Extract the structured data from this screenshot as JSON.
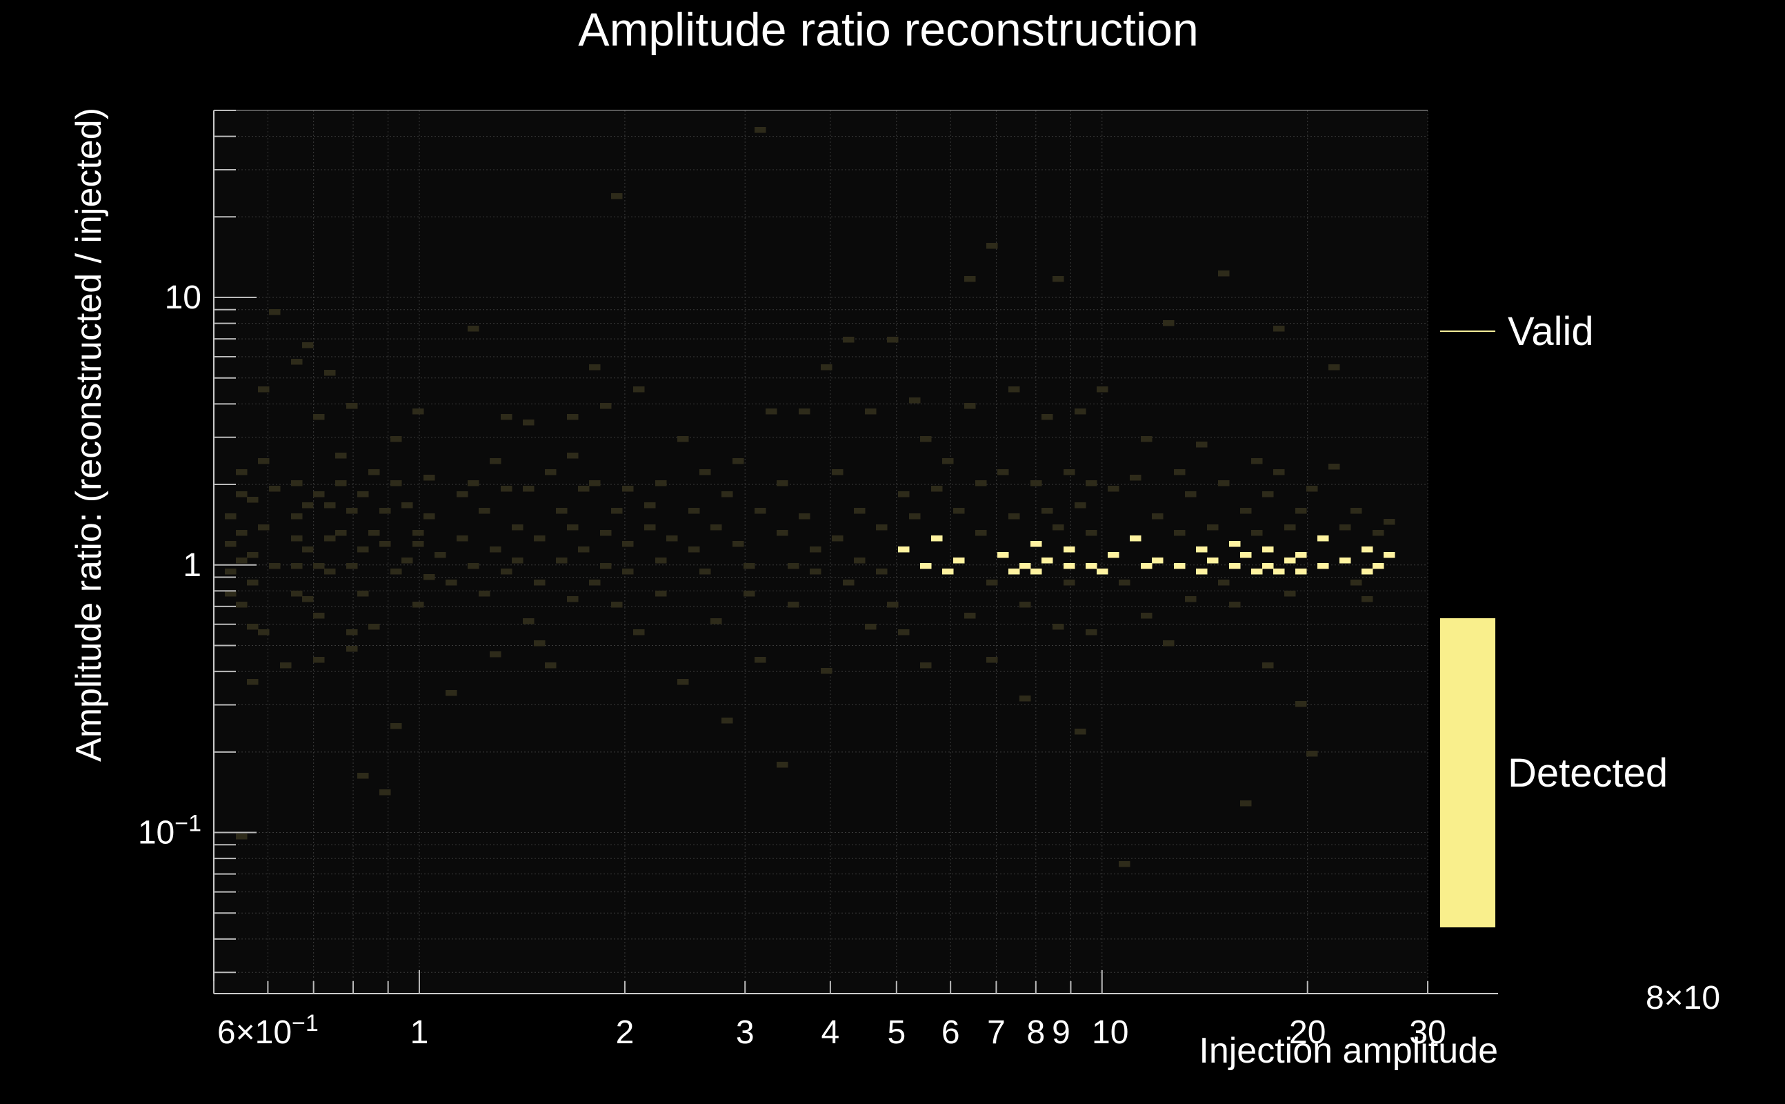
{
  "chart_data": {
    "type": "heatmap",
    "title": "Amplitude ratio  reconstruction",
    "xlabel": "Injection amplitude",
    "ylabel": "Amplitude ratio: (reconstructed / injected)",
    "x_scale": "log",
    "y_scale": "log",
    "xlim": [
      0.5,
      30
    ],
    "ylim": [
      0.025,
      50
    ],
    "grid": true,
    "x_ticks": [
      {
        "value": 0.6,
        "label": "6×10",
        "exp": "−1"
      },
      {
        "value": 1,
        "label": "1"
      },
      {
        "value": 2,
        "label": "2"
      },
      {
        "value": 3,
        "label": "3"
      },
      {
        "value": 4,
        "label": "4"
      },
      {
        "value": 5,
        "label": "5"
      },
      {
        "value": 6,
        "label": "6"
      },
      {
        "value": 7,
        "label": "7"
      },
      {
        "value": 8,
        "label": "8"
      },
      {
        "value": 9,
        "label": "9"
      },
      {
        "value": 10,
        "label": "10"
      },
      {
        "value": 20,
        "label": "20"
      },
      {
        "value": 30,
        "label": "30"
      }
    ],
    "y_ticks": [
      {
        "value": 10,
        "label": "10"
      },
      {
        "value": 1,
        "label": "1"
      },
      {
        "value": 0.1,
        "label": "10",
        "exp": "−1"
      }
    ],
    "colorbar_label": "8×10",
    "legend": {
      "position": "right",
      "entries": [
        {
          "name": "Valid",
          "style": "line",
          "color": "#f5ef9a"
        },
        {
          "name": "Detected",
          "style": "box",
          "color": "#f9ef8c"
        }
      ]
    },
    "colors": {
      "background": "#000000",
      "plot_background": "#0a0a0a",
      "low": "#2e2b1a",
      "mid": "#8c8456",
      "high": "#fff3a0",
      "grid": "#3a3a3a",
      "axis": "#cccccc"
    },
    "series": [
      {
        "name": "Detected",
        "points": [
          [
            0.53,
            1.55
          ],
          [
            0.53,
            1.2
          ],
          [
            0.53,
            0.95
          ],
          [
            0.53,
            0.8
          ],
          [
            0.54,
            2.2
          ],
          [
            0.54,
            1.8
          ],
          [
            0.55,
            1.35
          ],
          [
            0.55,
            1.05
          ],
          [
            0.55,
            0.7
          ],
          [
            0.56,
            0.6
          ],
          [
            0.56,
            0.37
          ],
          [
            0.54,
            0.095
          ],
          [
            0.58,
            1.75
          ],
          [
            0.58,
            1.1
          ],
          [
            0.58,
            0.85
          ],
          [
            0.6,
            4.5
          ],
          [
            0.6,
            2.4
          ],
          [
            0.6,
            1.4
          ],
          [
            0.6,
            0.55
          ],
          [
            0.62,
            8.8
          ],
          [
            0.62,
            1.9
          ],
          [
            0.62,
            1.0
          ],
          [
            0.63,
            0.42
          ],
          [
            0.65,
            1.5
          ],
          [
            0.65,
            1.25
          ],
          [
            0.66,
            1.0
          ],
          [
            0.66,
            0.8
          ],
          [
            0.67,
            5.8
          ],
          [
            0.67,
            2.0
          ],
          [
            0.68,
            1.7
          ],
          [
            0.68,
            1.15
          ],
          [
            0.69,
            6.5
          ],
          [
            0.69,
            0.75
          ],
          [
            0.71,
            3.6
          ],
          [
            0.71,
            1.8
          ],
          [
            0.71,
            1.0
          ],
          [
            0.72,
            0.65
          ],
          [
            0.72,
            0.45
          ],
          [
            0.74,
            1.65
          ],
          [
            0.74,
            1.25
          ],
          [
            0.75,
            5.2
          ],
          [
            0.75,
            0.95
          ],
          [
            0.76,
            2.6
          ],
          [
            0.78,
            2.0
          ],
          [
            0.78,
            1.3
          ],
          [
            0.79,
            0.55
          ],
          [
            0.8,
            4.0
          ],
          [
            0.8,
            1.6
          ],
          [
            0.8,
            1.0
          ],
          [
            0.81,
            0.48
          ],
          [
            0.82,
            0.16
          ],
          [
            0.83,
            1.8
          ],
          [
            0.83,
            1.15
          ],
          [
            0.84,
            0.8
          ],
          [
            0.86,
            2.2
          ],
          [
            0.86,
            1.35
          ],
          [
            0.87,
            0.6
          ],
          [
            0.88,
            0.14
          ],
          [
            0.89,
            1.6
          ],
          [
            0.9,
            1.2
          ],
          [
            0.91,
            0.95
          ],
          [
            0.92,
            0.25
          ],
          [
            0.93,
            3.0
          ],
          [
            0.94,
            2.0
          ],
          [
            0.95,
            1.05
          ],
          [
            0.97,
            1.7
          ],
          [
            0.98,
            1.3
          ],
          [
            0.99,
            0.72
          ],
          [
            1.0,
            3.8
          ],
          [
            1.0,
            1.2
          ],
          [
            1.02,
            0.9
          ],
          [
            1.05,
            2.1
          ],
          [
            1.05,
            1.5
          ],
          [
            1.08,
            1.1
          ],
          [
            1.1,
            0.85
          ],
          [
            1.12,
            0.33
          ],
          [
            1.15,
            1.8
          ],
          [
            1.15,
            1.25
          ],
          [
            1.18,
            7.8
          ],
          [
            1.2,
            2.0
          ],
          [
            1.2,
            1.0
          ],
          [
            1.25,
            1.6
          ],
          [
            1.25,
            0.78
          ],
          [
            1.28,
            0.46
          ],
          [
            1.3,
            2.5
          ],
          [
            1.3,
            1.15
          ],
          [
            1.32,
            0.95
          ],
          [
            1.35,
            1.9
          ],
          [
            1.35,
            3.6
          ],
          [
            1.38,
            1.4
          ],
          [
            1.4,
            1.05
          ],
          [
            1.42,
            0.62
          ],
          [
            1.45,
            3.4
          ],
          [
            1.45,
            1.9
          ],
          [
            1.48,
            0.5
          ],
          [
            1.5,
            1.25
          ],
          [
            1.52,
            0.88
          ],
          [
            1.55,
            0.42
          ],
          [
            1.58,
            2.2
          ],
          [
            1.6,
            1.6
          ],
          [
            1.62,
            1.05
          ],
          [
            1.65,
            3.6
          ],
          [
            1.65,
            0.75
          ],
          [
            1.68,
            1.4
          ],
          [
            1.7,
            2.6
          ],
          [
            1.72,
            1.9
          ],
          [
            1.75,
            1.15
          ],
          [
            1.78,
            0.85
          ],
          [
            1.8,
            5.5
          ],
          [
            1.82,
            2.0
          ],
          [
            1.85,
            1.3
          ],
          [
            1.88,
            3.9
          ],
          [
            1.9,
            1.0
          ],
          [
            1.92,
            0.7
          ],
          [
            1.95,
            24
          ],
          [
            1.98,
            1.6
          ],
          [
            2.0,
            1.9
          ],
          [
            2.02,
            1.2
          ],
          [
            2.05,
            0.95
          ],
          [
            2.08,
            0.55
          ],
          [
            2.1,
            4.5
          ],
          [
            2.15,
            1.7
          ],
          [
            2.2,
            1.4
          ],
          [
            2.22,
            1.05
          ],
          [
            2.25,
            0.78
          ],
          [
            2.3,
            2.0
          ],
          [
            2.35,
            1.25
          ],
          [
            2.4,
            0.37
          ],
          [
            2.45,
            3.0
          ],
          [
            2.5,
            1.6
          ],
          [
            2.55,
            1.15
          ],
          [
            2.6,
            0.95
          ],
          [
            2.65,
            2.2
          ],
          [
            2.7,
            1.4
          ],
          [
            2.75,
            0.62
          ],
          [
            2.8,
            1.8
          ],
          [
            2.85,
            0.26
          ],
          [
            2.9,
            1.2
          ],
          [
            2.95,
            2.5
          ],
          [
            3.0,
            1.0
          ],
          [
            3.05,
            0.8
          ],
          [
            3.1,
            42
          ],
          [
            3.15,
            1.6
          ],
          [
            3.2,
            0.45
          ],
          [
            3.3,
            3.8
          ],
          [
            3.35,
            1.3
          ],
          [
            3.4,
            0.18
          ],
          [
            3.45,
            2.0
          ],
          [
            3.5,
            1.0
          ],
          [
            3.55,
            0.7
          ],
          [
            3.6,
            3.7
          ],
          [
            3.7,
            1.5
          ],
          [
            3.8,
            1.15
          ],
          [
            3.85,
            0.95
          ],
          [
            3.9,
            0.4
          ],
          [
            4.0,
            5.5
          ],
          [
            4.05,
            2.2
          ],
          [
            4.1,
            1.25
          ],
          [
            4.2,
            0.85
          ],
          [
            4.3,
            6.8
          ],
          [
            4.35,
            1.6
          ],
          [
            4.4,
            1.05
          ],
          [
            4.5,
            0.6
          ],
          [
            4.6,
            3.8
          ],
          [
            4.7,
            1.4
          ],
          [
            4.8,
            0.95
          ],
          [
            4.9,
            0.72
          ],
          [
            5.0,
            7.0
          ],
          [
            5.05,
            1.8
          ],
          [
            5.1,
            1.15
          ],
          [
            5.2,
            0.55
          ],
          [
            5.3,
            4.2
          ],
          [
            5.4,
            1.5
          ],
          [
            5.5,
            1.0
          ],
          [
            5.55,
            0.42
          ],
          [
            5.6,
            3.0
          ],
          [
            5.7,
            1.9
          ],
          [
            5.8,
            1.25
          ],
          [
            5.9,
            0.95
          ],
          [
            6.0,
            2.5
          ],
          [
            6.1,
            1.6
          ],
          [
            6.2,
            1.05
          ],
          [
            6.3,
            0.65
          ],
          [
            6.4,
            11.5
          ],
          [
            6.5,
            4.0
          ],
          [
            6.6,
            2.0
          ],
          [
            6.7,
            1.3
          ],
          [
            6.8,
            0.85
          ],
          [
            6.9,
            0.45
          ],
          [
            7.0,
            15.5
          ],
          [
            7.1,
            2.2
          ],
          [
            7.2,
            1.1
          ],
          [
            7.3,
            0.95
          ],
          [
            7.4,
            4.5
          ],
          [
            7.5,
            1.5
          ],
          [
            7.6,
            1.0
          ],
          [
            7.7,
            0.7
          ],
          [
            7.8,
            0.32
          ],
          [
            7.9,
            2.0
          ],
          [
            8.0,
            1.2
          ],
          [
            8.1,
            0.95
          ],
          [
            8.2,
            3.5
          ],
          [
            8.3,
            1.6
          ],
          [
            8.4,
            1.05
          ],
          [
            8.5,
            0.6
          ],
          [
            8.6,
            11.5
          ],
          [
            8.7,
            1.4
          ],
          [
            8.8,
            1.0
          ],
          [
            8.9,
            0.85
          ],
          [
            9.0,
            2.2
          ],
          [
            9.1,
            1.15
          ],
          [
            9.2,
            0.24
          ],
          [
            9.3,
            3.8
          ],
          [
            9.4,
            1.7
          ],
          [
            9.5,
            1.0
          ],
          [
            9.6,
            0.55
          ],
          [
            9.7,
            2.0
          ],
          [
            9.8,
            1.3
          ],
          [
            9.9,
            0.95
          ],
          [
            10.0,
            4.5
          ],
          [
            10.2,
            1.9
          ],
          [
            10.4,
            1.1
          ],
          [
            10.6,
            0.85
          ],
          [
            10.8,
            0.075
          ],
          [
            11.0,
            2.1
          ],
          [
            11.2,
            1.25
          ],
          [
            11.4,
            1.0
          ],
          [
            11.6,
            0.65
          ],
          [
            11.8,
            3.0
          ],
          [
            12.0,
            1.5
          ],
          [
            12.2,
            1.05
          ],
          [
            12.4,
            0.5
          ],
          [
            12.6,
            8.0
          ],
          [
            12.8,
            2.2
          ],
          [
            13.0,
            1.35
          ],
          [
            13.2,
            1.0
          ],
          [
            13.4,
            0.75
          ],
          [
            13.6,
            1.8
          ],
          [
            13.8,
            1.15
          ],
          [
            14.0,
            0.95
          ],
          [
            14.2,
            2.8
          ],
          [
            14.4,
            1.4
          ],
          [
            14.6,
            1.05
          ],
          [
            14.8,
            0.85
          ],
          [
            15.0,
            12.5
          ],
          [
            15.2,
            2.0
          ],
          [
            15.4,
            1.2
          ],
          [
            15.6,
            1.0
          ],
          [
            15.8,
            0.7
          ],
          [
            16.0,
            0.13
          ],
          [
            16.2,
            1.6
          ],
          [
            16.4,
            1.1
          ],
          [
            16.6,
            0.95
          ],
          [
            16.8,
            2.5
          ],
          [
            17.0,
            1.3
          ],
          [
            17.2,
            1.0
          ],
          [
            17.4,
            0.42
          ],
          [
            17.6,
            1.8
          ],
          [
            17.8,
            1.15
          ],
          [
            18.0,
            0.95
          ],
          [
            18.2,
            7.8
          ],
          [
            18.4,
            2.2
          ],
          [
            18.6,
            1.4
          ],
          [
            18.8,
            1.05
          ],
          [
            19.0,
            0.8
          ],
          [
            19.2,
            0.3
          ],
          [
            19.4,
            1.6
          ],
          [
            19.6,
            1.1
          ],
          [
            19.8,
            0.95
          ],
          [
            20.0,
            0.2
          ],
          [
            20.4,
            1.9
          ],
          [
            20.8,
            1.25
          ],
          [
            21.2,
            1.0
          ],
          [
            21.6,
            5.5
          ],
          [
            22.0,
            2.3
          ],
          [
            22.4,
            1.4
          ],
          [
            22.8,
            1.05
          ],
          [
            23.2,
            0.85
          ],
          [
            23.6,
            1.6
          ],
          [
            24.0,
            1.15
          ],
          [
            24.4,
            0.95
          ],
          [
            24.8,
            0.75
          ],
          [
            25.2,
            1.3
          ],
          [
            25.6,
            1.0
          ],
          [
            26.0,
            1.45
          ],
          [
            26.4,
            1.1
          ]
        ]
      }
    ]
  }
}
